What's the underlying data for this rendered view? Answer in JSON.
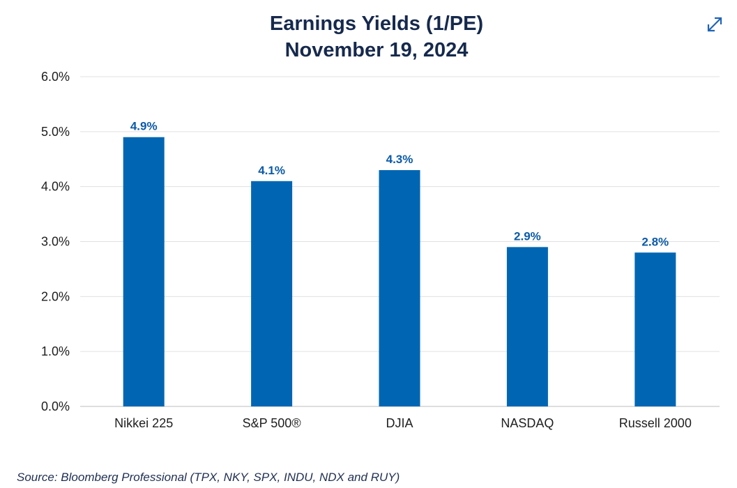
{
  "chart_data": {
    "type": "bar",
    "title": "Earnings Yields (1/PE)",
    "subtitle": "November 19, 2024",
    "categories": [
      "Nikkei 225",
      "S&P 500®",
      "DJIA",
      "NASDAQ",
      "Russell 2000"
    ],
    "values": [
      4.9,
      4.1,
      4.3,
      2.9,
      2.8
    ],
    "data_labels": [
      "4.9%",
      "4.1%",
      "4.3%",
      "2.9%",
      "2.8%"
    ],
    "ylim": [
      0,
      6
    ],
    "yticks": [
      0,
      1,
      2,
      3,
      4,
      5,
      6
    ],
    "ytick_labels": [
      "0.0%",
      "1.0%",
      "2.0%",
      "3.0%",
      "4.0%",
      "5.0%",
      "6.0%"
    ],
    "xlabel": "",
    "ylabel": "",
    "grid": true,
    "legend": "none",
    "bar_color": "#0066b3",
    "label_color": "#0b5aa8",
    "source": "Source: Bloomberg Professional (TPX, NKY, SPX, INDU, NDX and RUY)"
  },
  "toolbar": {
    "expand_icon": "expand-icon"
  }
}
